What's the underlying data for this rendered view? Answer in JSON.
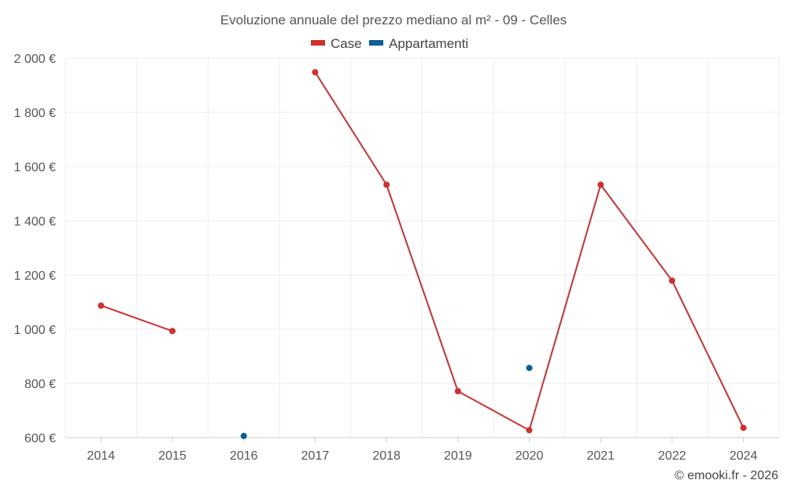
{
  "chart_data": {
    "type": "line",
    "title": "Evoluzione annuale del prezzo mediano al m² - 09 - Celles",
    "categories": [
      "2014",
      "2015",
      "2016",
      "2017",
      "2018",
      "2019",
      "2020",
      "2021",
      "2022",
      "2024"
    ],
    "y_tick_values": [
      600,
      800,
      1000,
      1200,
      1400,
      1600,
      1800,
      2000
    ],
    "y_tick_labels": [
      "600 €",
      "800 €",
      "1 000 €",
      "1 200 €",
      "1 400 €",
      "1 600 €",
      "1 800 €",
      "2 000 €"
    ],
    "ylim": [
      600,
      2000
    ],
    "grid": true,
    "legend_position": "top-center",
    "series": [
      {
        "name": "Case",
        "color": "#d32f2f",
        "values": [
          1087,
          993,
          null,
          1948,
          1533,
          771,
          627,
          1533,
          1179,
          636
        ]
      },
      {
        "name": "Appartamenti",
        "color": "#0b5f99",
        "values": [
          null,
          null,
          606,
          null,
          null,
          null,
          857,
          null,
          null,
          null
        ]
      }
    ]
  },
  "credit": "© emooki.fr - 2026"
}
